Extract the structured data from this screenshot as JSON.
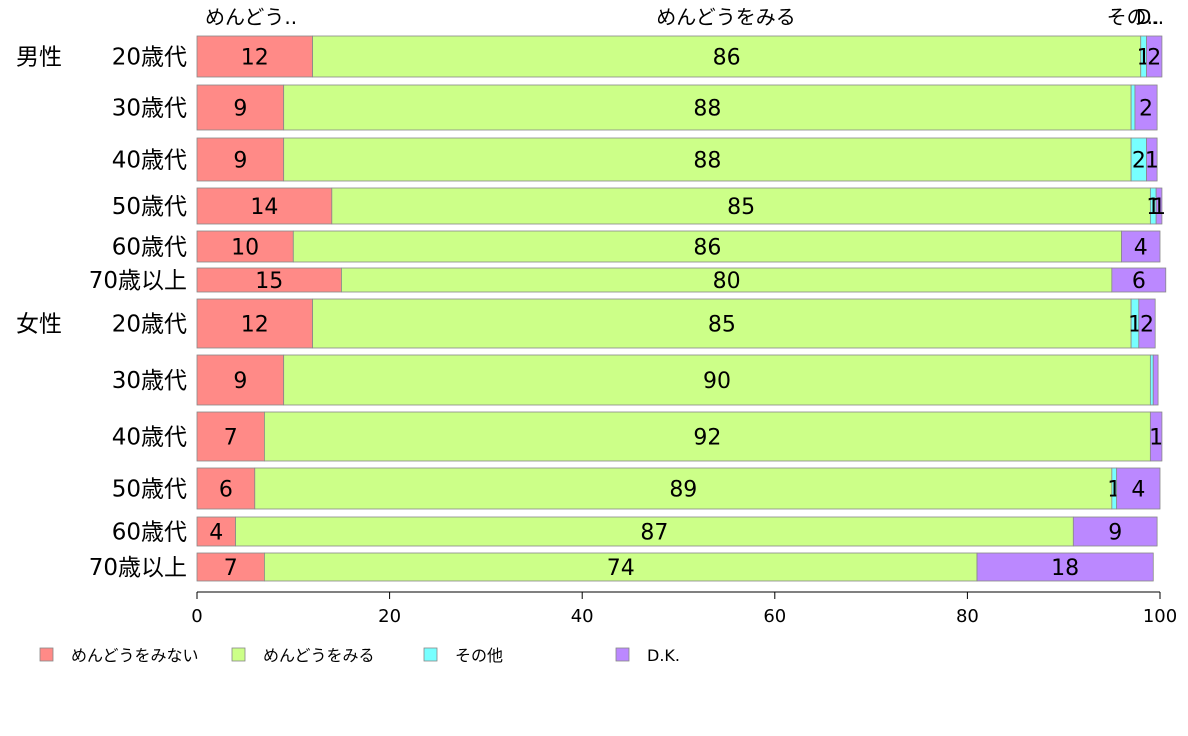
{
  "chart_data": {
    "type": "bar",
    "orientation": "horizontal",
    "stacked": true,
    "top_labels": [
      "めんどう..",
      "めんどうをみる",
      "その..",
      "D.."
    ],
    "groups": [
      {
        "label": "男性",
        "first_row": 0
      },
      {
        "label": "女性",
        "first_row": 6
      }
    ],
    "categories": [
      "20歳代",
      "30歳代",
      "40歳代",
      "50歳代",
      "60歳代",
      "70歳以上",
      "20歳代",
      "30歳代",
      "40歳代",
      "50歳代",
      "60歳代",
      "70歳以上"
    ],
    "series": [
      {
        "name": "めんどうをみない",
        "color": "#ff8a87",
        "values": [
          12,
          9,
          9,
          14,
          10,
          15,
          12,
          9,
          7,
          6,
          4,
          7
        ],
        "labels": [
          "12",
          "9",
          "9",
          "14",
          "10",
          "15",
          "12",
          "9",
          "7",
          "6",
          "4",
          "7"
        ]
      },
      {
        "name": "めんどうをみる",
        "color": "#ccff88",
        "values": [
          86,
          88,
          88,
          85,
          86,
          80,
          85,
          90,
          92,
          89,
          87,
          74
        ],
        "labels": [
          "86",
          "88",
          "88",
          "85",
          "86",
          "80",
          "85",
          "90",
          "92",
          "89",
          "87",
          "74"
        ]
      },
      {
        "name": "その他",
        "color": "#77ffff",
        "values": [
          0.6,
          0.4,
          1.6,
          0.6,
          0,
          0,
          0.8,
          0.3,
          0,
          0.5,
          0,
          0
        ],
        "labels": [
          "1",
          "",
          "2",
          "1",
          "",
          "",
          "1",
          "",
          "",
          "1",
          "",
          ""
        ]
      },
      {
        "name": "D.K.",
        "color": "#bb88ff",
        "values": [
          1.6,
          2.3,
          1.1,
          0.6,
          4.0,
          5.6,
          1.7,
          0.5,
          1.2,
          4.5,
          8.7,
          18.3
        ],
        "labels": [
          "2",
          "2",
          "1",
          "1",
          "4",
          "6",
          "2",
          "",
          "1",
          "4",
          "9",
          "18"
        ]
      }
    ],
    "xlim": [
      0,
      100
    ],
    "xticks": [
      "0",
      "20",
      "40",
      "60",
      "80",
      "100"
    ],
    "grid": false,
    "legend_position": "bottom"
  }
}
